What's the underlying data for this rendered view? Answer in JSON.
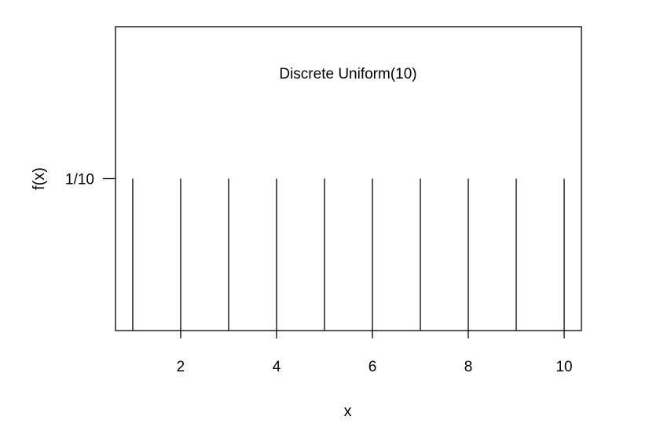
{
  "chart_data": {
    "type": "bar",
    "subtype": "stem",
    "annotation": "Discrete Uniform(10)",
    "xlabel": "x",
    "ylabel": "f(x)",
    "x": [
      1,
      2,
      3,
      4,
      5,
      6,
      7,
      8,
      9,
      10
    ],
    "values": [
      0.1,
      0.1,
      0.1,
      0.1,
      0.1,
      0.1,
      0.1,
      0.1,
      0.1,
      0.1
    ],
    "xlim": [
      0.64,
      10.36
    ],
    "ylim": [
      0,
      0.2
    ],
    "x_ticks": [
      2,
      4,
      6,
      8,
      10
    ],
    "y_ticks": [
      {
        "value": 0.1,
        "label": "1/10"
      }
    ],
    "grid": false,
    "legend": "none",
    "colors": {
      "line": "#000000",
      "background": "#ffffff"
    }
  }
}
